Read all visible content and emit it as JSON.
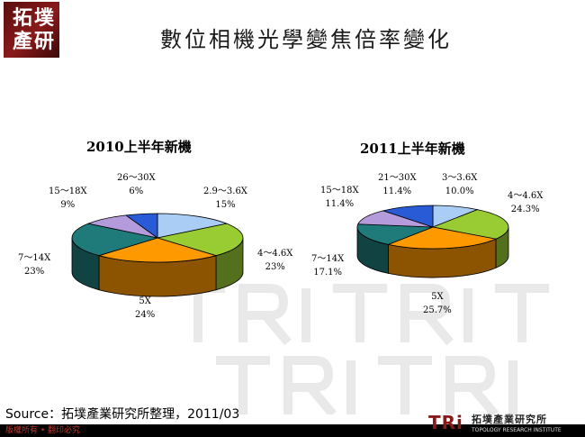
{
  "logo": {
    "line1": "拓墣",
    "line2": "產研"
  },
  "title": "數位相機光學變焦倍率變化",
  "source": "Source：拓墣產業研究所整理，2011/03",
  "copyright": "版權所有 • 翻印必究",
  "brand": {
    "mark": "TRi",
    "name": "拓墣產業研究所",
    "sub": "TOPOLOGY RESEARCH INSTITUTE"
  },
  "colors": {
    "light_blue": "#a9cdf5",
    "green": "#99cc33",
    "orange": "#ff9900",
    "teal": "#1f7a7a",
    "purple": "#b49cdc",
    "blue": "#2a5bd7"
  },
  "chart_data": [
    {
      "type": "pie",
      "title": "2010上半年新機",
      "slices": [
        {
          "label": "2.9～3.6X",
          "value": 15,
          "value_label": "15%",
          "color": "light_blue"
        },
        {
          "label": "4～4.6X",
          "value": 23,
          "value_label": "23%",
          "color": "green"
        },
        {
          "label": "5X",
          "value": 24,
          "value_label": "24%",
          "color": "orange"
        },
        {
          "label": "7～14X",
          "value": 23,
          "value_label": "23%",
          "color": "teal"
        },
        {
          "label": "15～18X",
          "value": 9,
          "value_label": "9%",
          "color": "purple"
        },
        {
          "label": "26～30X",
          "value": 6,
          "value_label": "6%",
          "color": "blue"
        }
      ]
    },
    {
      "type": "pie",
      "title": "2011上半年新機",
      "slices": [
        {
          "label": "3～3.6X",
          "value": 10.0,
          "value_label": "10.0%",
          "color": "light_blue"
        },
        {
          "label": "4～4.6X",
          "value": 24.3,
          "value_label": "24.3%",
          "color": "green"
        },
        {
          "label": "5X",
          "value": 25.7,
          "value_label": "25.7%",
          "color": "orange"
        },
        {
          "label": "7～14X",
          "value": 17.1,
          "value_label": "17.1%",
          "color": "teal"
        },
        {
          "label": "15～18X",
          "value": 11.4,
          "value_label": "11.4%",
          "color": "purple"
        },
        {
          "label": "21～30X",
          "value": 11.4,
          "value_label": "11.4%",
          "color": "blue"
        }
      ]
    }
  ]
}
